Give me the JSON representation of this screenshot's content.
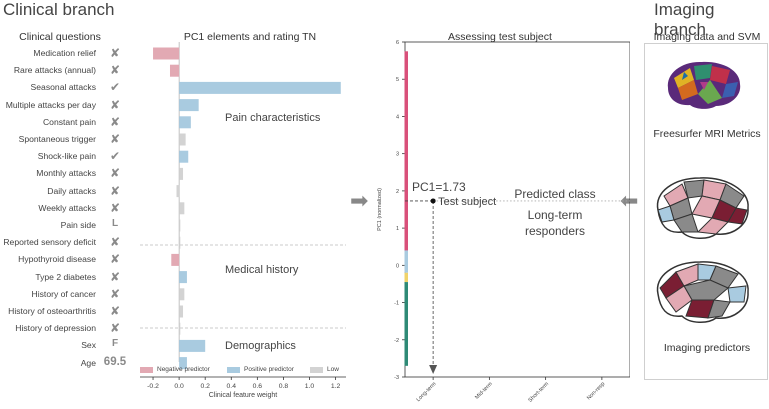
{
  "headers": {
    "clinical_branch": "Clinical branch",
    "imaging_branch": "Imaging branch",
    "clinical_questions": "Clinical questions",
    "pc1_title": "PC1 elements and rating TN",
    "assessing_title": "Assessing test subject",
    "imaging_svm_title": "Imaging data and SVM"
  },
  "questions": [
    {
      "label": "Medication relief",
      "answer": "✘"
    },
    {
      "label": "Rare attacks (annual)",
      "answer": "✘"
    },
    {
      "label": "Seasonal attacks",
      "answer": "✔"
    },
    {
      "label": "Multiple attacks per day",
      "answer": "✘"
    },
    {
      "label": "Constant pain",
      "answer": "✘"
    },
    {
      "label": "Spontaneous trigger",
      "answer": "✘"
    },
    {
      "label": "Shock-like pain",
      "answer": "✔"
    },
    {
      "label": "Monthly attacks",
      "answer": "✘"
    },
    {
      "label": "Daily attacks",
      "answer": "✘"
    },
    {
      "label": "Weekly attacks",
      "answer": "✘"
    },
    {
      "label": "Pain side",
      "answer": "L"
    },
    {
      "label": "Reported sensory deficit",
      "answer": "✘"
    },
    {
      "label": "Hypothyroid disease",
      "answer": "✘"
    },
    {
      "label": "Type 2 diabetes",
      "answer": "✘"
    },
    {
      "label": "History of cancer",
      "answer": "✘"
    },
    {
      "label": "History of osteoarthritis",
      "answer": "✘"
    },
    {
      "label": "History of depression",
      "answer": "✘"
    },
    {
      "label": "Sex",
      "answer": "F"
    },
    {
      "label": "Age",
      "answer": "69.5"
    }
  ],
  "sections": {
    "pain": "Pain characteristics",
    "medical": "Medical history",
    "demographics": "Demographics"
  },
  "chart_data": [
    {
      "type": "bar",
      "orientation": "horizontal",
      "title": "PC1 elements and rating TN",
      "xlabel": "Clinical feature weight",
      "xlim": [
        -0.3,
        1.28
      ],
      "xticks": [
        "-0.2",
        "0.0",
        "0.2",
        "0.4",
        "0.6",
        "0.8",
        "1.0",
        "1.2"
      ],
      "categories": [
        "Medication relief",
        "Rare attacks (annual)",
        "Seasonal attacks",
        "Multiple attacks per day",
        "Constant pain",
        "Spontaneous trigger",
        "Shock-like pain",
        "Monthly attacks",
        "Daily attacks",
        "Weekly attacks",
        "Pain side",
        "Reported sensory deficit",
        "Hypothyroid disease",
        "Type 2 diabetes",
        "History of cancer",
        "History of osteoarthritis",
        "History of depression",
        "Sex",
        "Age"
      ],
      "values": [
        -0.2,
        -0.07,
        1.24,
        0.15,
        0.09,
        0.05,
        0.07,
        0.03,
        -0.02,
        0.04,
        0.0,
        0.0,
        -0.06,
        0.06,
        0.04,
        0.03,
        0.0,
        0.2,
        0.06
      ],
      "classes": [
        "neg",
        "neg",
        "pos",
        "pos",
        "pos",
        "low",
        "pos",
        "low",
        "low",
        "low",
        "low",
        "low",
        "neg",
        "pos",
        "low",
        "low",
        "low",
        "pos",
        "pos"
      ],
      "legend": [
        {
          "key": "neg",
          "label": "Negative predictor",
          "color": "#e2a9b3"
        },
        {
          "key": "pos",
          "label": "Positive predictor",
          "color": "#a9cbe0"
        },
        {
          "key": "low",
          "label": "Low",
          "color": "#d3d3d3"
        }
      ]
    },
    {
      "type": "scatter",
      "title": "Assessing test subject",
      "ylabel": "PC1 (normalized)",
      "ylim": [
        -3,
        6
      ],
      "yticks": [
        "-3",
        "-2",
        "-1",
        "0",
        "1",
        "2",
        "3",
        "4",
        "5",
        "6"
      ],
      "xticks": [
        "Long-term",
        "Mid-term",
        "Short-term",
        "Non-resp"
      ],
      "color_bar": [
        {
          "from": 0.4,
          "to": 5.75,
          "color": "#d9507a"
        },
        {
          "from": -0.2,
          "to": 0.4,
          "color": "#a9cbe0"
        },
        {
          "from": -0.45,
          "to": -0.2,
          "color": "#f0d36a"
        },
        {
          "from": -2.7,
          "to": -0.45,
          "color": "#2e8a76"
        }
      ],
      "test_subject": {
        "value": 1.73,
        "category": "Long-term"
      },
      "annotations": {
        "pc1_label": "PC1=1.73",
        "subject_label": "Test subject",
        "predicted_class_title": "Predicted class",
        "predicted_class_line1": "Long-term",
        "predicted_class_line2": "responders"
      }
    }
  ],
  "imaging": {
    "freesurfer_label": "Freesurfer MRI Metrics",
    "predictors_label": "Imaging predictors"
  },
  "colors": {
    "negative": "#e2a9b3",
    "positive": "#a9cbe0",
    "low": "#d3d3d3",
    "dark_red": "#7a1e33"
  },
  "icons": {
    "arrow_right": "arrow-right-icon",
    "arrow_left": "arrow-left-icon"
  }
}
